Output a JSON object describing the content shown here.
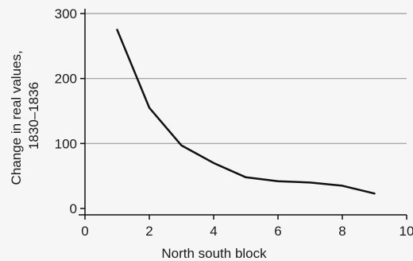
{
  "chart_data": {
    "type": "line",
    "title": "",
    "xlabel": "North south block",
    "ylabel_lines": [
      "Change in real values,",
      "1830–1836"
    ],
    "xlim": [
      0,
      10
    ],
    "ylim": [
      0,
      300
    ],
    "x_ticks": [
      0,
      2,
      4,
      6,
      8,
      10
    ],
    "y_ticks": [
      0,
      100,
      200,
      300
    ],
    "grid": "horizontal",
    "legend": "none",
    "line_color": "#111111",
    "series": [
      {
        "x": [
          1,
          2,
          3,
          4,
          5,
          6,
          7,
          8,
          9
        ],
        "values": [
          275,
          155,
          97,
          70,
          48,
          42,
          40,
          35,
          23
        ]
      }
    ]
  }
}
